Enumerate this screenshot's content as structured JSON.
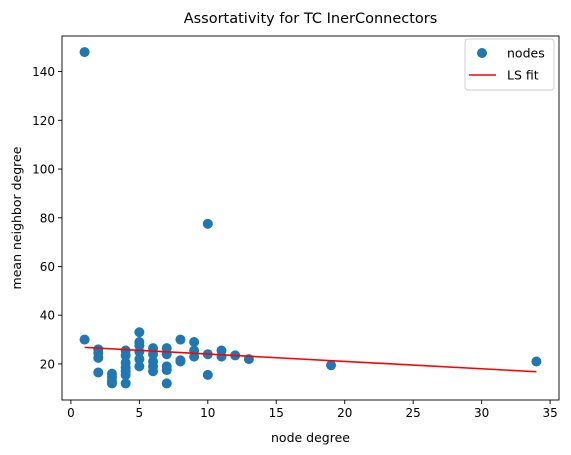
{
  "chart_data": {
    "type": "scatter",
    "title": "Assortativity for TC InerConnectors",
    "xlabel": "node degree",
    "ylabel": "mean neighbor degree",
    "xlim": [
      -0.65,
      35.65
    ],
    "ylim": [
      5.2,
      154.6
    ],
    "xticks": [
      0,
      5,
      10,
      15,
      20,
      25,
      30,
      35
    ],
    "yticks": [
      20,
      40,
      60,
      80,
      100,
      120,
      140
    ],
    "grid": false,
    "legend_position": "top-right",
    "series": [
      {
        "name": "nodes",
        "type": "scatter",
        "color": "#1f77b4",
        "points": [
          [
            1,
            148
          ],
          [
            1,
            30
          ],
          [
            2,
            26
          ],
          [
            2,
            24.5
          ],
          [
            2,
            22.5
          ],
          [
            2,
            16.5
          ],
          [
            3,
            16
          ],
          [
            3,
            14.5
          ],
          [
            3,
            13
          ],
          [
            3,
            12
          ],
          [
            4,
            25.5
          ],
          [
            4,
            23.5
          ],
          [
            4,
            20.5
          ],
          [
            4,
            18.5
          ],
          [
            4,
            17
          ],
          [
            4,
            15.5
          ],
          [
            4,
            12
          ],
          [
            5,
            33
          ],
          [
            5,
            29
          ],
          [
            5,
            27.5
          ],
          [
            5,
            25
          ],
          [
            5,
            22
          ],
          [
            5,
            19
          ],
          [
            6,
            26.5
          ],
          [
            6,
            24
          ],
          [
            6,
            21
          ],
          [
            6,
            19
          ],
          [
            6,
            17
          ],
          [
            7,
            26.5
          ],
          [
            7,
            24
          ],
          [
            7,
            19
          ],
          [
            7,
            17.5
          ],
          [
            7,
            12
          ],
          [
            8,
            30
          ],
          [
            8,
            21.5
          ],
          [
            8,
            21
          ],
          [
            9,
            29
          ],
          [
            9,
            25.5
          ],
          [
            9,
            23
          ],
          [
            10,
            77.5
          ],
          [
            10,
            24
          ],
          [
            10,
            15.5
          ],
          [
            11,
            25.5
          ],
          [
            11,
            23
          ],
          [
            12,
            23.5
          ],
          [
            13,
            22
          ],
          [
            19,
            19.5
          ],
          [
            34,
            21
          ]
        ]
      },
      {
        "name": "LS fit",
        "type": "line",
        "color": "#ff0000",
        "x": [
          1,
          34
        ],
        "y": [
          26.8,
          16.8
        ]
      }
    ]
  }
}
